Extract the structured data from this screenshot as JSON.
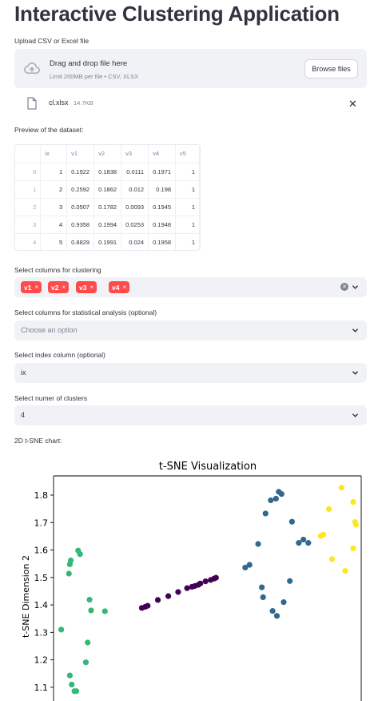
{
  "page": {
    "title": "Interactive Clustering Application"
  },
  "upload": {
    "label": "Upload CSV or Excel file",
    "drop_title": "Drag and drop file here",
    "drop_sub": "Limit 200MB per file • CSV, XLSX",
    "browse_label": "Browse files",
    "file_name": "cl.xlsx",
    "file_size": "14.7KB",
    "icon_cloud": "cloud-upload-icon",
    "icon_file": "file-icon",
    "icon_close": "close-icon"
  },
  "preview": {
    "label": "Preview of the dataset:",
    "columns": [
      "",
      "ix",
      "v1",
      "v2",
      "v3",
      "v4",
      "v5"
    ],
    "rows": [
      [
        "0",
        "1",
        "0.1922",
        "0.1838",
        "0.0111",
        "0.1971",
        "1"
      ],
      [
        "1",
        "2",
        "0.2592",
        "0.1862",
        "0.012",
        "0.198",
        "1"
      ],
      [
        "2",
        "3",
        "0.0507",
        "0.1782",
        "0.0093",
        "0.1945",
        "1"
      ],
      [
        "3",
        "4",
        "0.9358",
        "0.1994",
        "0.0253",
        "0.1948",
        "1"
      ],
      [
        "4",
        "5",
        "0.8829",
        "0.1991",
        "0.024",
        "0.1958",
        "1"
      ]
    ]
  },
  "clustering_columns": {
    "label": "Select columns for clustering",
    "tags": [
      "v1",
      "v2",
      "v3",
      "v4"
    ],
    "tag_remove": "×"
  },
  "stat_columns": {
    "label": "Select columns for statistical analysis (optional)",
    "placeholder": "Choose an option"
  },
  "index_column": {
    "label": "Select index column (optional)",
    "value": "ix"
  },
  "clusters": {
    "label": "Select numer of clusters",
    "value": "4"
  },
  "chart_section": {
    "label": "2D t-SNE chart:"
  },
  "colors": {
    "accent": "#ff4b4b",
    "widget_bg": "#f0f2f6",
    "cluster_colors": [
      "#440154",
      "#31688e",
      "#35b779",
      "#fde725"
    ]
  },
  "chart_data": {
    "type": "scatter",
    "title": "t-SNE Visualization",
    "ylabel": "t-SNE Dimension 2",
    "xlabel": "",
    "ylim": [
      1.05,
      1.87
    ],
    "xlim": [
      0,
      1
    ],
    "yticks": [
      "1.1",
      "1.2",
      "1.3",
      "1.4",
      "1.5",
      "1.6",
      "1.7",
      "1.8"
    ],
    "grid": false,
    "series": [
      {
        "cluster": 0,
        "points": [
          [
            0.287,
            1.389
          ],
          [
            0.298,
            1.393
          ],
          [
            0.306,
            1.397
          ],
          [
            0.339,
            1.418
          ],
          [
            0.373,
            1.432
          ],
          [
            0.405,
            1.447
          ],
          [
            0.434,
            1.461
          ],
          [
            0.45,
            1.466
          ],
          [
            0.459,
            1.469
          ],
          [
            0.47,
            1.473
          ],
          [
            0.477,
            1.478
          ],
          [
            0.494,
            1.486
          ],
          [
            0.511,
            1.491
          ],
          [
            0.522,
            1.496
          ],
          [
            0.528,
            1.499
          ]
        ]
      },
      {
        "cluster": 1,
        "points": [
          [
            0.623,
            1.536
          ],
          [
            0.637,
            1.546
          ],
          [
            0.665,
            1.622
          ],
          [
            0.677,
            1.464
          ],
          [
            0.681,
            1.428
          ],
          [
            0.689,
            1.733
          ],
          [
            0.706,
            1.781
          ],
          [
            0.712,
            1.378
          ],
          [
            0.723,
            1.787
          ],
          [
            0.726,
            1.36
          ],
          [
            0.732,
            1.812
          ],
          [
            0.741,
            1.804
          ],
          [
            0.748,
            1.41
          ],
          [
            0.768,
            1.487
          ],
          [
            0.775,
            1.703
          ],
          [
            0.797,
            1.626
          ],
          [
            0.812,
            1.638
          ],
          [
            0.828,
            1.626
          ]
        ]
      },
      {
        "cluster": 2,
        "points": [
          [
            0.025,
            1.31
          ],
          [
            0.05,
            1.514
          ],
          [
            0.053,
            1.548
          ],
          [
            0.056,
            1.562
          ],
          [
            0.053,
            1.143
          ],
          [
            0.059,
            1.11
          ],
          [
            0.068,
            1.086
          ],
          [
            0.074,
            1.086
          ],
          [
            0.08,
            1.598
          ],
          [
            0.086,
            1.585
          ],
          [
            0.105,
            1.191
          ],
          [
            0.111,
            1.263
          ],
          [
            0.117,
            1.419
          ],
          [
            0.122,
            1.38
          ],
          [
            0.167,
            1.377
          ]
        ]
      },
      {
        "cluster": 3,
        "points": [
          [
            0.868,
            1.651
          ],
          [
            0.877,
            1.656
          ],
          [
            0.895,
            1.749
          ],
          [
            0.905,
            1.567
          ],
          [
            0.936,
            1.827
          ],
          [
            0.948,
            1.524
          ],
          [
            0.974,
            1.775
          ],
          [
            0.974,
            1.606
          ],
          [
            0.98,
            1.702
          ],
          [
            0.983,
            1.692
          ]
        ]
      }
    ]
  }
}
